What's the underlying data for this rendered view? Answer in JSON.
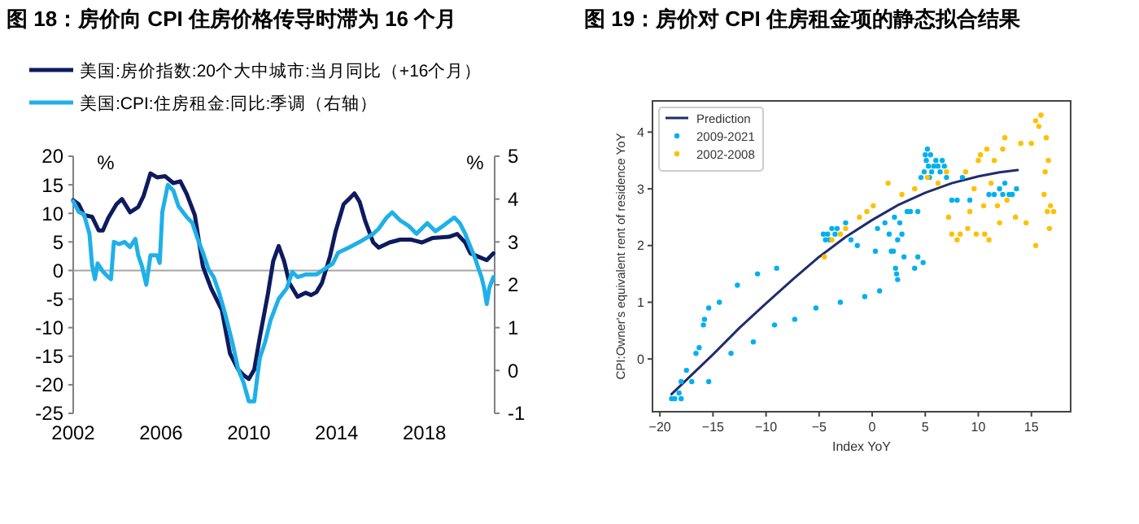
{
  "chart_data": [
    {
      "type": "line",
      "title": "图 18：房价向 CPI 住房价格传导时滞为 16 个月",
      "ylabel": "%",
      "y2label": "%",
      "legend": "top",
      "xlim": [
        2002,
        2021.2
      ],
      "xticks": [
        2002,
        2006,
        2010,
        2014,
        2018
      ],
      "ylim": [
        -25,
        20
      ],
      "yticks": [
        -25,
        -20,
        -15,
        -10,
        -5,
        0,
        5,
        10,
        15,
        20
      ],
      "y2lim": [
        -1,
        5
      ],
      "y2ticks": [
        -1,
        0,
        1,
        2,
        3,
        4,
        5
      ],
      "ref_lines": [
        {
          "axis": "y",
          "value": 0,
          "color": "#a6a6a6"
        }
      ],
      "series": [
        {
          "name": "美国:房价指数:20个大中城市:当月同比（+16个月）",
          "color": "#0d1b5e",
          "x": [
            2002.0,
            2002.25,
            2002.49,
            2002.86,
            2003.16,
            2003.35,
            2003.6,
            2003.97,
            2004.22,
            2004.59,
            2004.96,
            2005.2,
            2005.52,
            2005.82,
            2006.19,
            2006.56,
            2006.88,
            2007.17,
            2007.54,
            2007.91,
            2008.28,
            2008.77,
            2009.14,
            2009.51,
            2009.76,
            2010.0,
            2010.25,
            2010.5,
            2010.87,
            2011.11,
            2011.36,
            2011.61,
            2011.85,
            2012.22,
            2012.59,
            2012.84,
            2013.08,
            2013.33,
            2013.7,
            2013.95,
            2014.32,
            2014.56,
            2014.81,
            2015.05,
            2015.3,
            2015.67,
            2015.92,
            2016.41,
            2016.9,
            2017.39,
            2017.89,
            2018.38,
            2019.12,
            2019.49,
            2019.86,
            2020.1,
            2020.47,
            2020.84,
            2021.14
          ],
          "values": [
            12.3,
            11.6,
            9.7,
            9.4,
            7.0,
            7.0,
            9.2,
            11.6,
            12.5,
            10.2,
            11.1,
            13.0,
            17.0,
            16.3,
            16.5,
            15.3,
            15.6,
            13.4,
            9.7,
            0.7,
            -3.1,
            -6.9,
            -14.5,
            -17.3,
            -18.3,
            -19.0,
            -17.3,
            -11.7,
            -4.1,
            1.6,
            4.3,
            1.6,
            -2.2,
            -4.6,
            -3.9,
            -4.3,
            -3.8,
            -2.2,
            2.5,
            6.8,
            11.6,
            12.5,
            13.5,
            12.0,
            8.7,
            4.9,
            4.0,
            4.9,
            5.4,
            5.4,
            4.9,
            5.7,
            5.9,
            6.4,
            4.9,
            3.0,
            2.4,
            1.8,
            3.0
          ]
        },
        {
          "name": "美国:CPI:住房租金:同比:季调（右轴）",
          "color": "#1fb0e8",
          "axis": "y2",
          "x": [
            2002.0,
            2002.25,
            2002.49,
            2002.74,
            2002.86,
            2002.99,
            2003.11,
            2003.35,
            2003.6,
            2003.72,
            2003.85,
            2004.09,
            2004.34,
            2004.59,
            2004.83,
            2004.96,
            2005.13,
            2005.33,
            2005.52,
            2005.82,
            2005.94,
            2006.06,
            2006.31,
            2006.56,
            2006.8,
            2007.17,
            2007.42,
            2007.67,
            2007.91,
            2008.16,
            2008.4,
            2008.65,
            2008.9,
            2009.27,
            2009.51,
            2009.76,
            2010.0,
            2010.25,
            2010.37,
            2010.5,
            2010.74,
            2010.99,
            2011.36,
            2011.73,
            2011.98,
            2012.22,
            2012.59,
            2013.08,
            2013.45,
            2013.82,
            2014.07,
            2014.56,
            2015.05,
            2015.67,
            2015.92,
            2016.28,
            2016.53,
            2016.9,
            2017.27,
            2017.64,
            2018.13,
            2018.5,
            2018.87,
            2019.36,
            2019.61,
            2019.86,
            2020.1,
            2020.3,
            2020.47,
            2020.6,
            2020.72,
            2020.84,
            2020.96,
            2021.14
          ],
          "values": [
            3.95,
            3.7,
            3.64,
            3.19,
            2.45,
            2.13,
            2.5,
            2.31,
            2.18,
            2.13,
            3.0,
            2.95,
            3.0,
            2.88,
            3.07,
            2.69,
            2.44,
            2.0,
            2.69,
            2.69,
            2.51,
            3.7,
            4.33,
            4.2,
            3.83,
            3.58,
            3.45,
            3.07,
            2.75,
            2.37,
            2.18,
            1.81,
            1.36,
            0.61,
            0.04,
            -0.28,
            -0.72,
            -0.72,
            -0.22,
            0.29,
            0.66,
            1.17,
            1.67,
            1.92,
            2.3,
            2.18,
            2.24,
            2.24,
            2.37,
            2.49,
            2.75,
            2.87,
            3.0,
            3.19,
            3.31,
            3.57,
            3.69,
            3.5,
            3.38,
            3.19,
            3.44,
            3.25,
            3.38,
            3.57,
            3.44,
            3.19,
            2.88,
            2.63,
            2.37,
            2.18,
            1.93,
            1.55,
            1.93,
            2.18
          ]
        }
      ]
    },
    {
      "type": "scatter",
      "title": "图 19：房价对 CPI 住房租金项的静态拟合结果",
      "xlabel": "Index YoY",
      "ylabel": "CPI:Owner's equivalent rent of residence YoY",
      "legend": "top left",
      "xlim": [
        -20.7,
        18.7
      ],
      "xticks": [
        {
          "value": -20,
          "label": "−20"
        },
        {
          "value": -15,
          "label": "−15"
        },
        {
          "value": -10,
          "label": "−10"
        },
        {
          "value": -5,
          "label": "−5"
        },
        0,
        5,
        10,
        15
      ],
      "ylim": [
        -0.93,
        4.55
      ],
      "yticks": [
        0,
        1,
        2,
        3,
        4
      ],
      "series": [
        {
          "name": "Prediction",
          "color": "#1f2d6b",
          "type": "line",
          "x": [
            -18.9,
            -17,
            -15,
            -12.5,
            -10,
            -7.5,
            -5,
            -2.5,
            0,
            2.5,
            5,
            7.5,
            10,
            12,
            13.7
          ],
          "values": [
            -0.62,
            -0.28,
            0.08,
            0.55,
            0.98,
            1.4,
            1.8,
            2.15,
            2.45,
            2.72,
            2.93,
            3.1,
            3.22,
            3.29,
            3.33
          ]
        },
        {
          "name": "2009-2021",
          "color": "#00b0f0",
          "marker": "circle",
          "x": [
            -18.9,
            -18.6,
            -18.2,
            -18.0,
            -18.0,
            -17.5,
            -17.0,
            -16.6,
            -16.3,
            -15.9,
            -15.8,
            -15.4,
            -15.4,
            -14.4,
            -13.3,
            -12.7,
            -11.2,
            -10.8,
            -9.2,
            -9.0,
            -7.3,
            -5.3,
            -4.6,
            -4.4,
            -4.2,
            -4.0,
            -3.8,
            -3.5,
            -3.3,
            -3.0,
            -2.5,
            -2.0,
            -1.4,
            -0.7,
            0.3,
            0.5,
            0.7,
            1.2,
            1.6,
            1.8,
            2.0,
            2.1,
            2.2,
            2.3,
            2.4,
            2.4,
            2.6,
            2.8,
            3.0,
            3.3,
            3.6,
            4.0,
            4.3,
            4.3,
            4.6,
            4.8,
            4.9,
            5.0,
            5.1,
            5.2,
            5.3,
            5.4,
            5.5,
            5.6,
            5.8,
            6.0,
            6.2,
            6.4,
            6.6,
            6.8,
            7.0,
            7.5,
            8.0,
            8.5,
            9.2,
            11.0,
            11.5,
            12.0,
            12.3,
            12.5,
            12.9,
            13.2,
            13.6
          ],
          "values": [
            -0.7,
            -0.7,
            -0.6,
            -0.7,
            -0.4,
            -0.2,
            -0.4,
            0.1,
            0.2,
            0.6,
            0.7,
            0.9,
            -0.4,
            1.0,
            0.1,
            1.3,
            0.3,
            1.5,
            0.6,
            1.6,
            0.7,
            0.9,
            2.2,
            2.1,
            2.2,
            2.1,
            2.3,
            2.2,
            2.3,
            1.0,
            2.4,
            2.1,
            2.0,
            1.1,
            1.9,
            2.3,
            1.2,
            2.4,
            2.2,
            1.9,
            1.9,
            2.5,
            1.6,
            1.5,
            1.4,
            2.1,
            2.4,
            2.2,
            1.8,
            2.6,
            2.6,
            1.6,
            1.8,
            2.6,
            3.2,
            1.7,
            3.3,
            3.6,
            3.5,
            3.7,
            3.4,
            3.2,
            3.6,
            3.3,
            3.4,
            3.5,
            3.4,
            3.3,
            3.5,
            3.4,
            3.2,
            2.8,
            2.8,
            3.2,
            2.8,
            2.9,
            2.9,
            3.0,
            2.9,
            3.1,
            2.9,
            2.9,
            3.0
          ]
        },
        {
          "name": "2002-2008",
          "color": "#ffc000",
          "marker": "circle",
          "x": [
            -4.5,
            -3.8,
            -3.0,
            -2.5,
            -1.2,
            -0.5,
            0.1,
            1.5,
            2.8,
            4.0,
            5.2,
            6.2,
            7.0,
            7.2,
            7.5,
            8.0,
            8.3,
            8.8,
            9.0,
            9.2,
            9.6,
            9.8,
            10.0,
            10.2,
            10.5,
            10.6,
            10.8,
            11.0,
            11.2,
            11.5,
            11.8,
            12.0,
            12.3,
            12.5,
            12.7,
            13.5,
            14.0,
            14.5,
            15.0,
            15.4,
            15.4,
            15.7,
            15.9,
            16.2,
            16.3,
            16.4,
            16.5,
            16.6,
            16.7,
            16.8,
            17.1
          ],
          "values": [
            1.8,
            2.1,
            2.2,
            2.3,
            2.5,
            2.6,
            2.7,
            3.1,
            2.9,
            3.0,
            3.2,
            3.1,
            3.3,
            2.5,
            2.2,
            2.1,
            2.2,
            3.3,
            2.3,
            2.6,
            3.0,
            2.2,
            3.5,
            3.6,
            2.7,
            2.2,
            3.7,
            2.1,
            3.1,
            3.5,
            2.7,
            2.4,
            3.7,
            3.9,
            2.8,
            2.5,
            3.8,
            2.4,
            3.8,
            2.0,
            4.2,
            4.1,
            4.3,
            2.9,
            3.3,
            3.9,
            2.6,
            3.5,
            2.3,
            2.7,
            2.6
          ]
        }
      ]
    }
  ]
}
